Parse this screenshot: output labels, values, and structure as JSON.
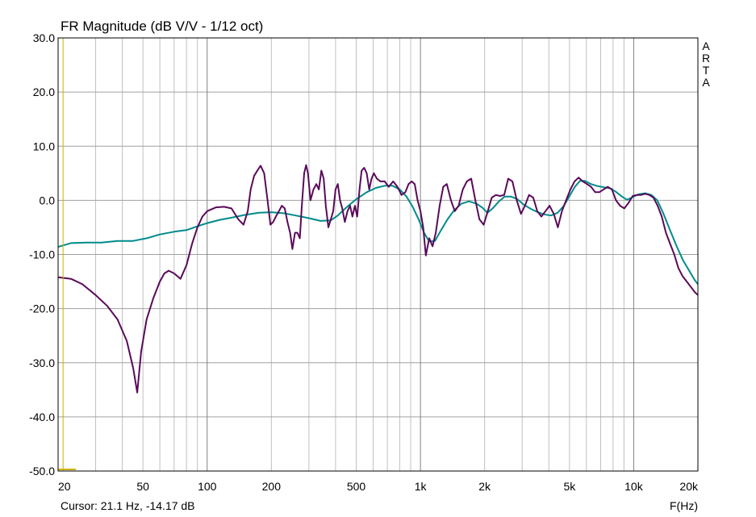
{
  "chart_data": {
    "type": "line",
    "title": "FR Magnitude (dB V/V - 1/12 oct)",
    "xlabel": "F(Hz)",
    "x_scale": "log",
    "xlim": [
      20,
      20000
    ],
    "ylim": [
      -50,
      30
    ],
    "grid": true,
    "x_tick_labels": [
      {
        "value": 20,
        "label": "20"
      },
      {
        "value": 50,
        "label": "50"
      },
      {
        "value": 100,
        "label": "100"
      },
      {
        "value": 200,
        "label": "200"
      },
      {
        "value": 500,
        "label": "500"
      },
      {
        "value": 1000,
        "label": "1k"
      },
      {
        "value": 2000,
        "label": "2k"
      },
      {
        "value": 5000,
        "label": "5k"
      },
      {
        "value": 10000,
        "label": "10k"
      },
      {
        "value": 20000,
        "label": "20k"
      }
    ],
    "y_tick_labels": [
      {
        "value": 30,
        "label": "30.0"
      },
      {
        "value": 20,
        "label": "20.0"
      },
      {
        "value": 10,
        "label": "10.0"
      },
      {
        "value": 0,
        "label": "0.0"
      },
      {
        "value": -10,
        "label": "-10.0"
      },
      {
        "value": -20,
        "label": "-20.0"
      },
      {
        "value": -30,
        "label": "-30.0"
      },
      {
        "value": -40,
        "label": "-40.0"
      },
      {
        "value": -50,
        "label": "-50.0"
      }
    ],
    "series": [
      {
        "color": "#5a0a5a",
        "points": [
          [
            20,
            -14.2
          ],
          [
            23,
            -14.5
          ],
          [
            26,
            -15.5
          ],
          [
            30,
            -17.5
          ],
          [
            34,
            -19.5
          ],
          [
            38,
            -22
          ],
          [
            42,
            -26
          ],
          [
            45,
            -31
          ],
          [
            47,
            -35.5
          ],
          [
            49,
            -28
          ],
          [
            52,
            -22
          ],
          [
            56,
            -18
          ],
          [
            60,
            -15
          ],
          [
            63,
            -13.5
          ],
          [
            66,
            -13
          ],
          [
            70,
            -13.5
          ],
          [
            75,
            -14.5
          ],
          [
            80,
            -12
          ],
          [
            85,
            -8
          ],
          [
            90,
            -5
          ],
          [
            95,
            -3
          ],
          [
            100,
            -2
          ],
          [
            110,
            -1.3
          ],
          [
            120,
            -1.2
          ],
          [
            130,
            -1.5
          ],
          [
            140,
            -3.5
          ],
          [
            148,
            -4.5
          ],
          [
            155,
            -2
          ],
          [
            160,
            2
          ],
          [
            166,
            4.5
          ],
          [
            172,
            5.5
          ],
          [
            178,
            6.4
          ],
          [
            185,
            5
          ],
          [
            192,
            0
          ],
          [
            198,
            -4.5
          ],
          [
            204,
            -4
          ],
          [
            210,
            -3
          ],
          [
            217,
            -2
          ],
          [
            224,
            -1
          ],
          [
            231,
            -1.5
          ],
          [
            238,
            -4
          ],
          [
            245,
            -6
          ],
          [
            251,
            -9
          ],
          [
            258,
            -6
          ],
          [
            265,
            -6
          ],
          [
            272,
            -7
          ],
          [
            278,
            -1
          ],
          [
            285,
            5
          ],
          [
            291,
            6.5
          ],
          [
            297,
            5
          ],
          [
            305,
            0
          ],
          [
            315,
            2
          ],
          [
            325,
            3
          ],
          [
            334,
            2
          ],
          [
            343,
            5.5
          ],
          [
            352,
            4
          ],
          [
            360,
            -1
          ],
          [
            370,
            -5
          ],
          [
            380,
            -3.5
          ],
          [
            390,
            -2
          ],
          [
            400,
            2
          ],
          [
            410,
            3
          ],
          [
            420,
            0
          ],
          [
            430,
            -1.5
          ],
          [
            442,
            -4
          ],
          [
            455,
            -2
          ],
          [
            468,
            -1
          ],
          [
            480,
            -3
          ],
          [
            493,
            -1
          ],
          [
            505,
            -3
          ],
          [
            518,
            2
          ],
          [
            530,
            5.5
          ],
          [
            545,
            6
          ],
          [
            560,
            5
          ],
          [
            575,
            2
          ],
          [
            590,
            4
          ],
          [
            605,
            5
          ],
          [
            625,
            4
          ],
          [
            650,
            3.5
          ],
          [
            680,
            3.5
          ],
          [
            710,
            2.5
          ],
          [
            745,
            3.5
          ],
          [
            780,
            2.5
          ],
          [
            815,
            1
          ],
          [
            850,
            1.5
          ],
          [
            880,
            3
          ],
          [
            910,
            3.5
          ],
          [
            940,
            3
          ],
          [
            970,
            0
          ],
          [
            1000,
            -2
          ],
          [
            1030,
            -5
          ],
          [
            1060,
            -10.2
          ],
          [
            1100,
            -7
          ],
          [
            1140,
            -8.5
          ],
          [
            1180,
            -6
          ],
          [
            1230,
            -1
          ],
          [
            1280,
            2.5
          ],
          [
            1330,
            3
          ],
          [
            1390,
            0
          ],
          [
            1450,
            -2
          ],
          [
            1510,
            -1
          ],
          [
            1580,
            2
          ],
          [
            1650,
            3.5
          ],
          [
            1730,
            4
          ],
          [
            1810,
            0
          ],
          [
            1890,
            -3.5
          ],
          [
            1980,
            -4.5
          ],
          [
            2070,
            -2
          ],
          [
            2160,
            0.5
          ],
          [
            2260,
            1
          ],
          [
            2360,
            0.8
          ],
          [
            2470,
            1
          ],
          [
            2580,
            4
          ],
          [
            2700,
            3.5
          ],
          [
            2830,
            0
          ],
          [
            2960,
            -2.5
          ],
          [
            3090,
            -1
          ],
          [
            3230,
            1
          ],
          [
            3380,
            0.5
          ],
          [
            3530,
            -2
          ],
          [
            3690,
            -3
          ],
          [
            3860,
            -2
          ],
          [
            4030,
            -1
          ],
          [
            4220,
            -2.5
          ],
          [
            4410,
            -5
          ],
          [
            4610,
            -2
          ],
          [
            4820,
            0
          ],
          [
            5050,
            2
          ],
          [
            5280,
            3.5
          ],
          [
            5520,
            4.2
          ],
          [
            5770,
            3.5
          ],
          [
            6040,
            3
          ],
          [
            6310,
            2.5
          ],
          [
            6600,
            1.5
          ],
          [
            6900,
            1.5
          ],
          [
            7220,
            2
          ],
          [
            7550,
            2.5
          ],
          [
            7900,
            2
          ],
          [
            8260,
            0
          ],
          [
            8640,
            -1
          ],
          [
            9040,
            -1.5
          ],
          [
            9450,
            -0.5
          ],
          [
            9890,
            0.8
          ],
          [
            10340,
            1
          ],
          [
            10820,
            1
          ],
          [
            11310,
            1.2
          ],
          [
            11830,
            1
          ],
          [
            12380,
            0.5
          ],
          [
            12950,
            -1
          ],
          [
            13540,
            -3
          ],
          [
            14160,
            -6
          ],
          [
            14810,
            -8
          ],
          [
            15490,
            -10
          ],
          [
            16200,
            -12.5
          ],
          [
            16950,
            -14
          ],
          [
            17730,
            -15
          ],
          [
            18540,
            -16
          ],
          [
            19390,
            -17
          ],
          [
            20000,
            -17.5
          ]
        ]
      },
      {
        "color": "#008b8b",
        "points": [
          [
            20,
            -8.6
          ],
          [
            23,
            -7.9
          ],
          [
            27,
            -7.8
          ],
          [
            32,
            -7.8
          ],
          [
            38,
            -7.5
          ],
          [
            45,
            -7.5
          ],
          [
            52,
            -7
          ],
          [
            60,
            -6.3
          ],
          [
            70,
            -5.8
          ],
          [
            80,
            -5.5
          ],
          [
            90,
            -4.8
          ],
          [
            100,
            -4.2
          ],
          [
            115,
            -3.6
          ],
          [
            130,
            -3.2
          ],
          [
            150,
            -2.7
          ],
          [
            175,
            -2.3
          ],
          [
            200,
            -2.2
          ],
          [
            230,
            -2.4
          ],
          [
            260,
            -2.8
          ],
          [
            300,
            -3.3
          ],
          [
            340,
            -3.8
          ],
          [
            380,
            -3.7
          ],
          [
            410,
            -2.8
          ],
          [
            450,
            -1.3
          ],
          [
            500,
            0.2
          ],
          [
            560,
            1.5
          ],
          [
            620,
            2.3
          ],
          [
            680,
            2.7
          ],
          [
            740,
            2.7
          ],
          [
            800,
            2
          ],
          [
            860,
            0.7
          ],
          [
            920,
            -1.2
          ],
          [
            980,
            -3.5
          ],
          [
            1040,
            -6
          ],
          [
            1100,
            -7.6
          ],
          [
            1170,
            -7.5
          ],
          [
            1250,
            -5.5
          ],
          [
            1340,
            -3.5
          ],
          [
            1440,
            -1.8
          ],
          [
            1560,
            -0.6
          ],
          [
            1690,
            -0.2
          ],
          [
            1830,
            -0.6
          ],
          [
            1960,
            -1.4
          ],
          [
            2060,
            -2.3
          ],
          [
            2180,
            -1.5
          ],
          [
            2320,
            -0.3
          ],
          [
            2480,
            0.7
          ],
          [
            2660,
            0.7
          ],
          [
            2850,
            0.2
          ],
          [
            3050,
            -0.8
          ],
          [
            3300,
            -1.6
          ],
          [
            3550,
            -2.2
          ],
          [
            3800,
            -2.6
          ],
          [
            4100,
            -2.8
          ],
          [
            4400,
            -2.3
          ],
          [
            4700,
            -1
          ],
          [
            5000,
            0.8
          ],
          [
            5300,
            2.5
          ],
          [
            5600,
            3.6
          ],
          [
            5900,
            3.6
          ],
          [
            6300,
            3
          ],
          [
            6800,
            2.6
          ],
          [
            7300,
            2.4
          ],
          [
            7800,
            2.2
          ],
          [
            8300,
            1.5
          ],
          [
            8800,
            0.7
          ],
          [
            9300,
            0.1
          ],
          [
            9800,
            0.5
          ],
          [
            10500,
            1.1
          ],
          [
            11300,
            1.3
          ],
          [
            12100,
            1
          ],
          [
            12900,
            0
          ],
          [
            13800,
            -2.5
          ],
          [
            14800,
            -5.5
          ],
          [
            15900,
            -8.5
          ],
          [
            17000,
            -11
          ],
          [
            18200,
            -13
          ],
          [
            19300,
            -14.7
          ],
          [
            20000,
            -15.5
          ]
        ]
      }
    ],
    "cursor": {
      "x": 21.1,
      "y": -14.17,
      "color": "#c8b400"
    },
    "cursor_text": "Cursor: 21.1 Hz, -14.17 dB",
    "brand_letters": [
      "A",
      "R",
      "T",
      "A"
    ]
  }
}
